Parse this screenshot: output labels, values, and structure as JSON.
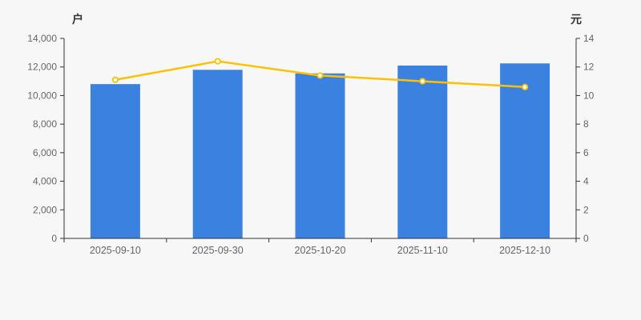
{
  "chart_data": {
    "type": "bar",
    "title": "",
    "categories": [
      "2025-09-10",
      "2025-09-30",
      "2025-10-20",
      "2025-11-10",
      "2025-12-10"
    ],
    "series": [
      {
        "type": "bar",
        "yaxis": "left",
        "color": "#3B82E0",
        "values": [
          10800,
          11800,
          11550,
          12100,
          12250
        ]
      },
      {
        "type": "line",
        "yaxis": "right",
        "color": "#FFC000",
        "point_fill": "#FFFFFF",
        "values": [
          11.1,
          12.4,
          11.4,
          11.0,
          10.6
        ]
      }
    ],
    "left_axis": {
      "name": "户",
      "min": 0,
      "max": 14000,
      "interval": 2000,
      "tick_labels": [
        "0",
        "2,000",
        "4,000",
        "6,000",
        "8,000",
        "10,000",
        "12,000",
        "14,000"
      ]
    },
    "right_axis": {
      "name": "元",
      "min": 0,
      "max": 14,
      "interval": 2,
      "tick_labels": [
        "0",
        "2",
        "4",
        "6",
        "8",
        "10",
        "12",
        "14"
      ]
    },
    "grid": false,
    "legend": false,
    "colors": {
      "background": "#F7F7F7",
      "axis_line": "#333333",
      "tick_label": "#666666",
      "axis_name": "#333333"
    }
  }
}
